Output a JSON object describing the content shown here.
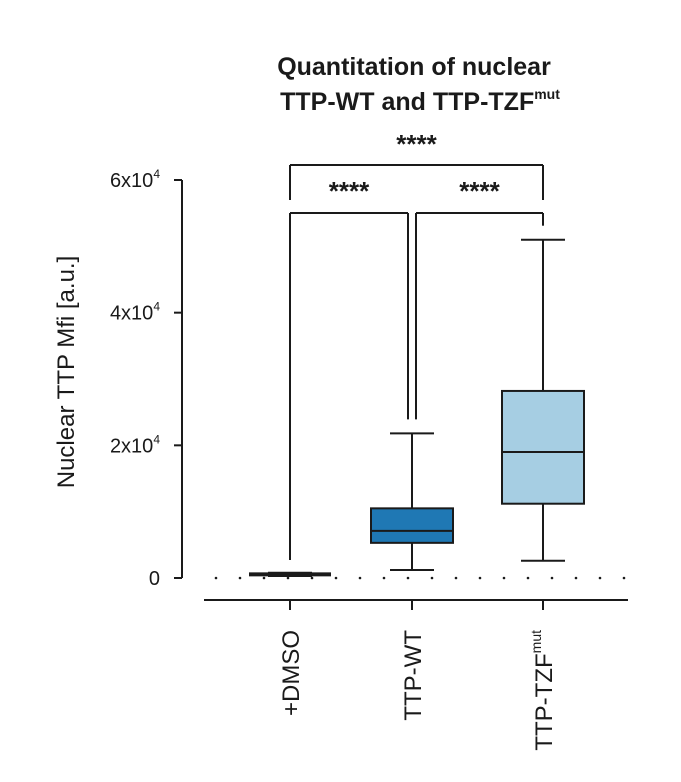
{
  "chart_data": {
    "type": "box",
    "title_line1": "Quantitation of nuclear",
    "title_line2_main": "TTP-WT and TTP-TZF",
    "title_line2_sup": "mut",
    "ylabel": "Nuclear TTP Mfi [a.u.]",
    "xlabel": "",
    "ylim": [
      0,
      60000
    ],
    "yticks": [
      {
        "value": 0,
        "base": "0",
        "exp": ""
      },
      {
        "value": 20000,
        "base": "2x10",
        "exp": "4"
      },
      {
        "value": 40000,
        "base": "4x10",
        "exp": "4"
      },
      {
        "value": 60000,
        "base": "6x10",
        "exp": "4"
      }
    ],
    "categories": [
      {
        "base": "+DMSO",
        "sup": ""
      },
      {
        "base": "TTP-WT",
        "sup": ""
      },
      {
        "base": "TTP-TZF",
        "sup": "mut"
      }
    ],
    "boxes": [
      {
        "min": 300,
        "q1": 400,
        "median": 500,
        "q3": 700,
        "max": 800,
        "color": "#1a1a1a"
      },
      {
        "min": 1200,
        "q1": 5300,
        "median": 7100,
        "q3": 10500,
        "max": 21800,
        "color": "#1f78b4"
      },
      {
        "min": 2600,
        "q1": 11200,
        "median": 19000,
        "q3": 28200,
        "max": 51000,
        "color": "#a6cee3"
      }
    ],
    "significance": [
      {
        "from": 0,
        "to": 1,
        "label": "****"
      },
      {
        "from": 1,
        "to": 2,
        "label": "****"
      },
      {
        "from": 0,
        "to": 2,
        "label": "****"
      }
    ]
  }
}
